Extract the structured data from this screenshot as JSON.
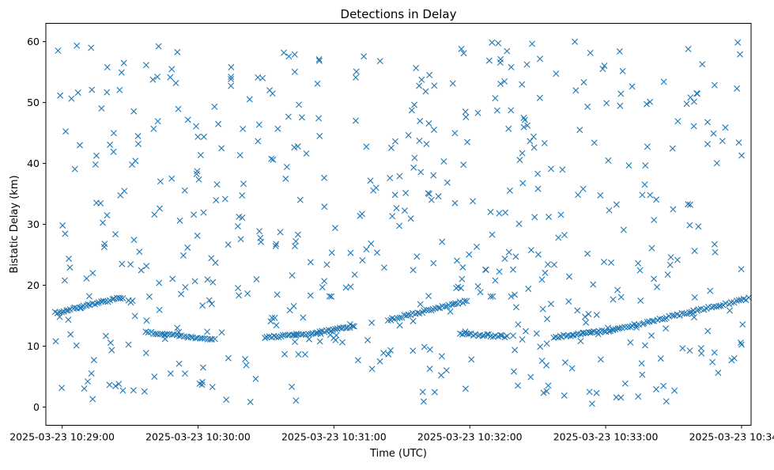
{
  "chart_data": {
    "type": "scatter",
    "title": "Detections in Delay",
    "xlabel": "Time (UTC)",
    "ylabel": "Bistatic Delay (km)",
    "marker": "x",
    "color": "#1f77b4",
    "x_unit": "minutes since 2025-03-23 10:29:00",
    "xlim": [
      -0.12,
      5.07
    ],
    "ylim": [
      -3.0,
      63.0
    ],
    "xticks": [
      {
        "value": 0,
        "label": "2025-03-23 10:29:00"
      },
      {
        "value": 1,
        "label": "2025-03-23 10:30:00"
      },
      {
        "value": 2,
        "label": "2025-03-23 10:31:00"
      },
      {
        "value": 3,
        "label": "2025-03-23 10:32:00"
      },
      {
        "value": 4,
        "label": "2025-03-23 10:33:00"
      },
      {
        "value": 5,
        "label": "2025-03-23 10:34:00"
      }
    ],
    "yticks": [
      {
        "value": 0,
        "label": "0"
      },
      {
        "value": 10,
        "label": "10"
      },
      {
        "value": 20,
        "label": "20"
      },
      {
        "value": 30,
        "label": "30"
      },
      {
        "value": 40,
        "label": "40"
      },
      {
        "value": 50,
        "label": "50"
      },
      {
        "value": 60,
        "label": "60"
      }
    ],
    "series": [
      {
        "name": "Detections",
        "tracks": [
          {
            "x_start": -0.05,
            "y_start": 15.5,
            "x_end": 0.45,
            "y_end": 18.0,
            "count": 32
          },
          {
            "x_start": 0.62,
            "y_start": 12.3,
            "x_end": 1.12,
            "y_end": 11.1,
            "count": 30
          },
          {
            "x_start": 1.49,
            "y_start": 11.4,
            "x_end": 1.88,
            "y_end": 12.2,
            "count": 24
          },
          {
            "x_start": 1.88,
            "y_start": 12.2,
            "x_end": 2.15,
            "y_end": 13.3,
            "count": 18
          },
          {
            "x_start": 2.4,
            "y_start": 14.3,
            "x_end": 2.98,
            "y_end": 17.4,
            "count": 36
          },
          {
            "x_start": 2.93,
            "y_start": 12.0,
            "x_end": 3.27,
            "y_end": 11.6,
            "count": 22
          },
          {
            "x_start": 3.62,
            "y_start": 11.5,
            "x_end": 4.05,
            "y_end": 12.6,
            "count": 30
          },
          {
            "x_start": 4.05,
            "y_start": 12.6,
            "x_end": 5.05,
            "y_end": 17.8,
            "count": 56
          }
        ],
        "scatter": {
          "count": 560,
          "x_range": [
            -0.05,
            5.02
          ],
          "y_range": [
            0.5,
            60.0
          ]
        }
      }
    ]
  }
}
